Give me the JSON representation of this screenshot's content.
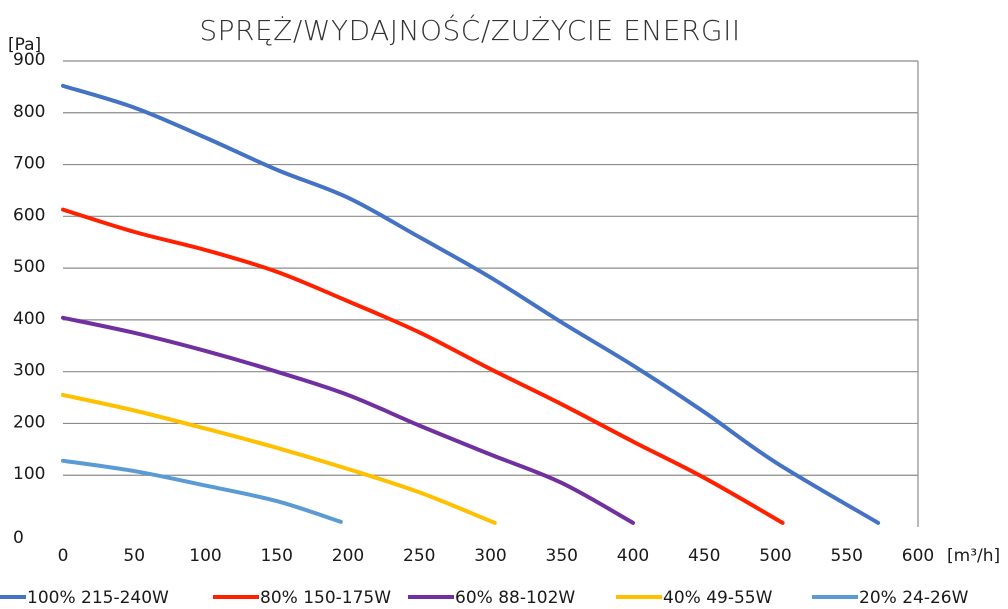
{
  "chart_data": {
    "type": "line",
    "title": "SPRĘŻ/WYDAJNOŚĆ/ZUŻYCIE ENERGII",
    "ylabel": "[Pa]",
    "xlabel": "[m³/h]",
    "xlim": [
      0,
      600
    ],
    "ylim": [
      0,
      900
    ],
    "x_ticks": [
      "0",
      "50",
      "100",
      "150",
      "200",
      "250",
      "300",
      "350",
      "400",
      "450",
      "500",
      "550",
      "600"
    ],
    "y_ticks": [
      "0",
      "100",
      "200",
      "300",
      "400",
      "500",
      "600",
      "700",
      "800",
      "900"
    ],
    "grid": true,
    "legend_position": "bottom",
    "series": [
      {
        "name": "100% 215-240W",
        "color": "#4472C4",
        "points": [
          [
            0,
            852
          ],
          [
            50,
            810
          ],
          [
            100,
            752
          ],
          [
            150,
            690
          ],
          [
            200,
            636
          ],
          [
            250,
            560
          ],
          [
            300,
            482
          ],
          [
            350,
            395
          ],
          [
            400,
            312
          ],
          [
            450,
            222
          ],
          [
            500,
            125
          ],
          [
            572,
            8
          ]
        ]
      },
      {
        "name": "80% 150-175W",
        "color": "#FF2000",
        "points": [
          [
            0,
            613
          ],
          [
            50,
            570
          ],
          [
            100,
            535
          ],
          [
            150,
            493
          ],
          [
            200,
            436
          ],
          [
            250,
            376
          ],
          [
            300,
            305
          ],
          [
            350,
            237
          ],
          [
            400,
            165
          ],
          [
            450,
            95
          ],
          [
            505,
            8
          ]
        ]
      },
      {
        "name": "60% 88-102W",
        "color": "#7030A0",
        "points": [
          [
            0,
            404
          ],
          [
            50,
            375
          ],
          [
            100,
            340
          ],
          [
            150,
            300
          ],
          [
            200,
            255
          ],
          [
            250,
            196
          ],
          [
            300,
            140
          ],
          [
            350,
            85
          ],
          [
            400,
            8
          ]
        ]
      },
      {
        "name": "40% 49-55W",
        "color": "#FFC000",
        "points": [
          [
            0,
            255
          ],
          [
            50,
            225
          ],
          [
            100,
            190
          ],
          [
            150,
            153
          ],
          [
            200,
            112
          ],
          [
            250,
            67
          ],
          [
            303,
            8
          ]
        ]
      },
      {
        "name": "20% 24-26W",
        "color": "#5B9BD5",
        "points": [
          [
            0,
            128
          ],
          [
            50,
            108
          ],
          [
            100,
            80
          ],
          [
            150,
            50
          ],
          [
            195,
            10
          ]
        ]
      }
    ]
  }
}
